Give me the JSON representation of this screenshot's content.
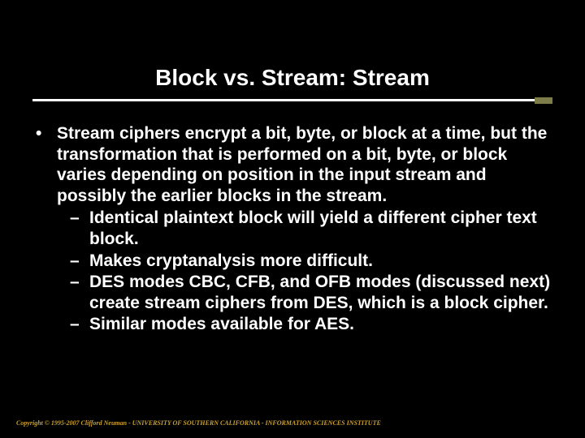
{
  "slide": {
    "title": "Block vs. Stream: Stream",
    "background_color": "#000000",
    "text_color": "#ffffff",
    "title_fontsize": 28,
    "body_fontsize": 21,
    "title_rule_color": "#ffffff",
    "title_rule_accent_color": "#7d7d4a",
    "main_bullet": "Stream ciphers encrypt a bit, byte, or block at a time, but the transformation that is performed on a bit, byte, or block varies depending on position in the input stream and possibly the earlier blocks in the stream.",
    "sub_bullets": [
      "Identical plaintext block will yield a different cipher text block.",
      "Makes cryptanalysis more difficult.",
      "DES modes CBC, CFB, and OFB modes (discussed next) create stream ciphers from DES, which is a block cipher.",
      "Similar modes available for AES."
    ],
    "copyright": "Copyright © 1995-2007 Clifford Neuman - UNIVERSITY OF SOUTHERN CALIFORNIA - INFORMATION SCIENCES INSTITUTE",
    "copyright_color": "#c8a030"
  }
}
